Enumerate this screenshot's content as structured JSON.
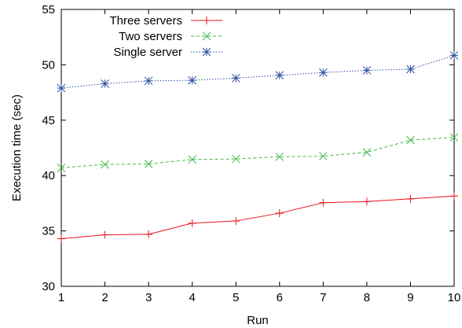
{
  "chart_data": {
    "type": "line",
    "title": "",
    "xlabel": "Run",
    "ylabel": "Execution time (sec)",
    "xlim": [
      1,
      10
    ],
    "ylim": [
      30,
      55
    ],
    "x": [
      1,
      2,
      3,
      4,
      5,
      6,
      7,
      8,
      9,
      10
    ],
    "x_ticks": [
      "1",
      "2",
      "3",
      "4",
      "5",
      "6",
      "7",
      "8",
      "9",
      "10"
    ],
    "y_ticks": [
      "30",
      "35",
      "40",
      "45",
      "50",
      "55"
    ],
    "y_tick_values": [
      30,
      35,
      40,
      45,
      50,
      55
    ],
    "grid": false,
    "legend_position": "top-left",
    "series": [
      {
        "name": "Three servers",
        "color": "#e8121e",
        "line_style": "solid",
        "marker": "plus",
        "values": [
          34.3,
          34.65,
          34.7,
          35.7,
          35.9,
          36.6,
          37.55,
          37.65,
          37.9,
          38.15
        ]
      },
      {
        "name": "Two servers",
        "color": "#44b84a",
        "line_style": "dashed",
        "marker": "cross",
        "values": [
          40.7,
          41.0,
          41.05,
          41.45,
          41.5,
          41.7,
          41.75,
          42.1,
          43.2,
          43.45
        ]
      },
      {
        "name": "Single server",
        "color": "#2b4fa0",
        "line_style": "dotted",
        "marker": "star",
        "values": [
          47.9,
          48.3,
          48.55,
          48.6,
          48.8,
          49.05,
          49.3,
          49.5,
          49.6,
          50.85
        ]
      }
    ]
  }
}
